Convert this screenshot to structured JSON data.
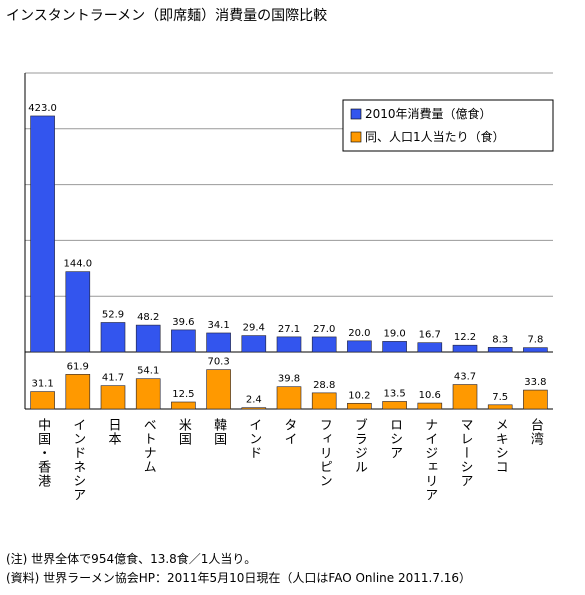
{
  "chart_data": {
    "type": "bar",
    "title": "インスタントラーメン（即席麺）消費量の国際比較",
    "categories": [
      "中国・香港",
      "インドネシア",
      "日本",
      "ベトナム",
      "米国",
      "韓国",
      "インド",
      "タイ",
      "フィリピン",
      "ブラジル",
      "ロシア",
      "ナイジェリア",
      "マレーシア",
      "メキシコ",
      "台湾"
    ],
    "series": [
      {
        "name": "2010年消費量（億食）",
        "color": "#3355ee",
        "values": [
          423.0,
          144.0,
          52.9,
          48.2,
          39.6,
          34.1,
          29.4,
          27.1,
          27.0,
          20.0,
          19.0,
          16.7,
          12.2,
          8.3,
          7.8
        ],
        "value_labels": [
          "423.0",
          "144.0",
          "52.9",
          "48.2",
          "39.6",
          "34.1",
          "29.4",
          "27.1",
          "27.0",
          "20.0",
          "19.0",
          "16.7",
          "12.2",
          "8.3",
          "7.8"
        ]
      },
      {
        "name": "同、人口1人当たり（食）",
        "color": "#ff9900",
        "axis": "y2",
        "values": [
          31.1,
          61.9,
          41.7,
          54.1,
          12.5,
          70.3,
          2.4,
          39.8,
          28.8,
          10.2,
          13.5,
          10.6,
          43.7,
          7.5,
          33.8
        ],
        "value_labels": [
          "31.1",
          "61.9",
          "41.7",
          "54.1",
          "12.5",
          "70.3",
          "2.4",
          "39.8",
          "28.8",
          "10.2",
          "13.5",
          "10.6",
          "43.7",
          "7.5",
          "33.8"
        ]
      }
    ],
    "ylim": [
      0,
      500
    ],
    "yticks": [
      0,
      100,
      200,
      300,
      400,
      500
    ],
    "y2lim": [
      0,
      100
    ],
    "y2ticks": [
      0,
      100
    ],
    "grid": true,
    "legend": "upper right",
    "notes": [
      "(注) 世界全体で954億食、13.8食／1人当り。",
      "(資料) 世界ラーメン協会HP：2011年5月10日現在（人口はFAO Online 2011.7.16）"
    ]
  }
}
